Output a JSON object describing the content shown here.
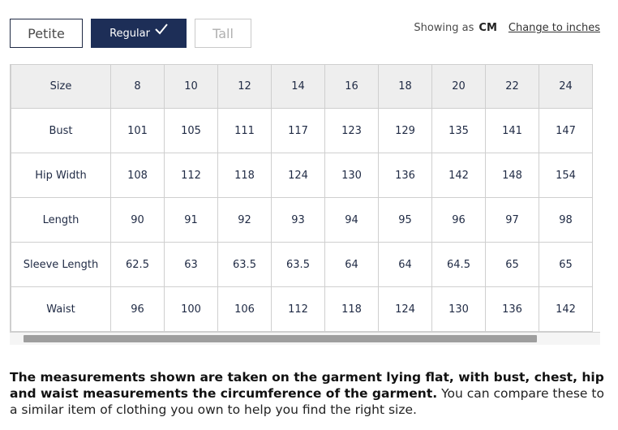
{
  "fit_tabs": [
    {
      "label": "Petite",
      "selected": false
    },
    {
      "label": "Regular",
      "selected": true
    },
    {
      "label": "Tall",
      "selected": false
    }
  ],
  "units": {
    "showing_as": "Showing as",
    "current_unit": "CM",
    "change_link": "Change to inches"
  },
  "size_table": {
    "header_label": "Size",
    "sizes": [
      "8",
      "10",
      "12",
      "14",
      "16",
      "18",
      "20",
      "22",
      "24"
    ],
    "rows": [
      {
        "label": "Bust",
        "values": [
          "101",
          "105",
          "111",
          "117",
          "123",
          "129",
          "135",
          "141",
          "147"
        ]
      },
      {
        "label": "Hip Width",
        "values": [
          "108",
          "112",
          "118",
          "124",
          "130",
          "136",
          "142",
          "148",
          "154"
        ]
      },
      {
        "label": "Length",
        "values": [
          "90",
          "91",
          "92",
          "93",
          "94",
          "95",
          "96",
          "97",
          "98"
        ]
      },
      {
        "label": "Sleeve Length",
        "values": [
          "62.5",
          "63",
          "63.5",
          "63.5",
          "64",
          "64",
          "64.5",
          "65",
          "65"
        ]
      },
      {
        "label": "Waist",
        "values": [
          "96",
          "100",
          "106",
          "112",
          "118",
          "124",
          "130",
          "136",
          "142"
        ]
      }
    ]
  },
  "note": {
    "bold": "The measurements shown are taken on the garment lying flat, with bust, chest, hip and waist measurements the circumference of the garment.",
    "regular": " You can compare these to a similar item of clothing you own to help you find the right size."
  },
  "colors": {
    "selected_tab_bg": "#1d2e57",
    "text_navy": "#1f2a44",
    "header_bg": "#eeeeee"
  }
}
